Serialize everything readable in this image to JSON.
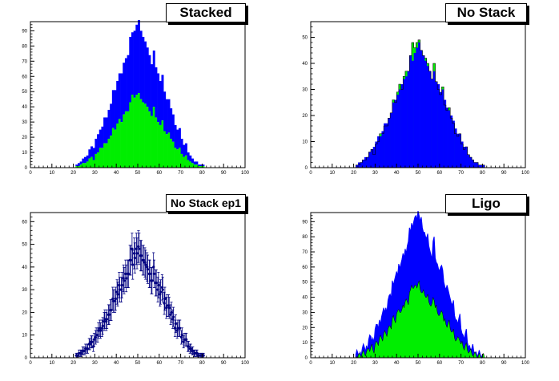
{
  "colors": {
    "stack_top": "#0000ff",
    "stack_bottom": "#00ee00",
    "errorbar": "#000080",
    "axis": "#000000",
    "background": "#ffffff"
  },
  "panels": [
    {
      "title": "Stacked"
    },
    {
      "title": "No Stack"
    },
    {
      "title": "No Stack ep1"
    },
    {
      "title": "Ligo"
    }
  ],
  "chart_data": [
    {
      "type": "bar",
      "mode": "stacked",
      "xlim": [
        0,
        100
      ],
      "ylim": [
        0,
        96
      ],
      "xticks": [
        0,
        10,
        20,
        30,
        40,
        50,
        60,
        70,
        80,
        90,
        100
      ],
      "yticks": [
        0,
        10,
        20,
        30,
        40,
        50,
        60,
        70,
        80,
        90
      ],
      "bin_width": 1,
      "x": [
        21,
        22,
        23,
        24,
        25,
        26,
        27,
        28,
        29,
        30,
        31,
        32,
        33,
        34,
        35,
        36,
        37,
        38,
        39,
        40,
        41,
        42,
        43,
        44,
        45,
        46,
        47,
        48,
        49,
        50,
        51,
        52,
        53,
        54,
        55,
        56,
        57,
        58,
        59,
        60,
        61,
        62,
        63,
        64,
        65,
        66,
        67,
        68,
        69,
        70,
        71,
        72,
        73,
        74,
        75,
        76,
        77,
        78,
        79,
        80
      ],
      "series": [
        {
          "values": [
            1,
            1,
            2,
            3,
            3,
            4,
            6,
            7,
            5,
            9,
            10,
            13,
            13,
            16,
            16,
            19,
            21,
            26,
            25,
            29,
            32,
            30,
            35,
            37,
            37,
            43,
            48,
            46,
            48,
            49,
            45,
            43,
            42,
            40,
            37,
            34,
            40,
            33,
            30,
            28,
            31,
            24,
            22,
            23,
            19,
            17,
            13,
            12,
            13,
            9,
            7,
            8,
            5,
            4,
            3,
            2,
            2,
            1,
            1,
            1
          ]
        },
        {
          "values": [
            1,
            2,
            2,
            3,
            4,
            4,
            6,
            7,
            8,
            10,
            12,
            12,
            14,
            17,
            17,
            19,
            21,
            25,
            26,
            28,
            30,
            32,
            34,
            35,
            37,
            43,
            41,
            44,
            46,
            48,
            45,
            43,
            41,
            39,
            37,
            34,
            37,
            33,
            32,
            29,
            30,
            26,
            23,
            22,
            20,
            18,
            15,
            13,
            13,
            10,
            8,
            8,
            5,
            4,
            3,
            2,
            2,
            1,
            1,
            1
          ]
        }
      ]
    },
    {
      "type": "bar",
      "mode": "overlay",
      "xlim": [
        0,
        100
      ],
      "ylim": [
        0,
        56
      ],
      "xticks": [
        0,
        10,
        20,
        30,
        40,
        50,
        60,
        70,
        80,
        90,
        100
      ],
      "yticks": [
        0,
        10,
        20,
        30,
        40,
        50
      ],
      "bin_width": 1,
      "x": [
        21,
        22,
        23,
        24,
        25,
        26,
        27,
        28,
        29,
        30,
        31,
        32,
        33,
        34,
        35,
        36,
        37,
        38,
        39,
        40,
        41,
        42,
        43,
        44,
        45,
        46,
        47,
        48,
        49,
        50,
        51,
        52,
        53,
        54,
        55,
        56,
        57,
        58,
        59,
        60,
        61,
        62,
        63,
        64,
        65,
        66,
        67,
        68,
        69,
        70,
        71,
        72,
        73,
        74,
        75,
        76,
        77,
        78,
        79,
        80
      ],
      "series": [
        {
          "values": [
            1,
            1,
            2,
            3,
            3,
            4,
            6,
            7,
            5,
            9,
            10,
            13,
            13,
            16,
            16,
            19,
            21,
            26,
            25,
            29,
            32,
            30,
            35,
            37,
            37,
            43,
            48,
            46,
            48,
            49,
            45,
            43,
            42,
            40,
            37,
            34,
            40,
            33,
            30,
            28,
            31,
            24,
            22,
            23,
            19,
            17,
            13,
            12,
            13,
            9,
            7,
            8,
            5,
            4,
            3,
            2,
            2,
            1,
            1,
            1
          ]
        },
        {
          "values": [
            1,
            2,
            2,
            3,
            4,
            4,
            6,
            7,
            8,
            10,
            12,
            12,
            14,
            17,
            17,
            19,
            21,
            25,
            26,
            28,
            30,
            32,
            34,
            35,
            37,
            43,
            41,
            44,
            46,
            48,
            45,
            43,
            41,
            39,
            37,
            34,
            37,
            33,
            32,
            29,
            30,
            26,
            23,
            22,
            20,
            18,
            15,
            13,
            13,
            10,
            8,
            8,
            5,
            4,
            3,
            2,
            2,
            1,
            1,
            1
          ]
        }
      ]
    },
    {
      "type": "scatter",
      "mode": "error_bars",
      "xlim": [
        0,
        100
      ],
      "ylim": [
        0,
        64
      ],
      "xticks": [
        0,
        10,
        20,
        30,
        40,
        50,
        60,
        70,
        80,
        90,
        100
      ],
      "yticks": [
        0,
        10,
        20,
        30,
        40,
        50,
        60
      ],
      "x": [
        21,
        22,
        23,
        24,
        25,
        26,
        27,
        28,
        29,
        30,
        31,
        32,
        33,
        34,
        35,
        36,
        37,
        38,
        39,
        40,
        41,
        42,
        43,
        44,
        45,
        46,
        47,
        48,
        49,
        50,
        51,
        52,
        53,
        54,
        55,
        56,
        57,
        58,
        59,
        60,
        61,
        62,
        63,
        64,
        65,
        66,
        67,
        68,
        69,
        70,
        71,
        72,
        73,
        74,
        75,
        76,
        77,
        78,
        79,
        80
      ],
      "series": [
        {
          "values": [
            1,
            1,
            2,
            3,
            3,
            4,
            6,
            7,
            5,
            9,
            10,
            13,
            13,
            16,
            16,
            19,
            21,
            26,
            25,
            29,
            32,
            30,
            35,
            37,
            37,
            43,
            48,
            46,
            48,
            49,
            45,
            43,
            42,
            40,
            37,
            34,
            40,
            33,
            30,
            28,
            31,
            24,
            22,
            23,
            19,
            17,
            13,
            12,
            13,
            9,
            7,
            8,
            5,
            4,
            3,
            2,
            2,
            1,
            1,
            1
          ]
        },
        {
          "values": [
            1,
            2,
            2,
            3,
            4,
            4,
            6,
            7,
            8,
            10,
            12,
            12,
            14,
            17,
            17,
            19,
            21,
            25,
            26,
            28,
            30,
            32,
            34,
            35,
            37,
            43,
            41,
            44,
            46,
            48,
            45,
            43,
            41,
            39,
            37,
            34,
            37,
            33,
            32,
            29,
            30,
            26,
            23,
            22,
            20,
            18,
            15,
            13,
            13,
            10,
            8,
            8,
            5,
            4,
            3,
            2,
            2,
            1,
            1,
            1
          ]
        }
      ]
    },
    {
      "type": "area",
      "mode": "stacked",
      "xlim": [
        0,
        100
      ],
      "ylim": [
        0,
        96
      ],
      "xticks": [
        0,
        10,
        20,
        30,
        40,
        50,
        60,
        70,
        80,
        90,
        100
      ],
      "yticks": [
        0,
        10,
        20,
        30,
        40,
        50,
        60,
        70,
        80,
        90
      ],
      "x": [
        21,
        22,
        23,
        24,
        25,
        26,
        27,
        28,
        29,
        30,
        31,
        32,
        33,
        34,
        35,
        36,
        37,
        38,
        39,
        40,
        41,
        42,
        43,
        44,
        45,
        46,
        47,
        48,
        49,
        50,
        51,
        52,
        53,
        54,
        55,
        56,
        57,
        58,
        59,
        60,
        61,
        62,
        63,
        64,
        65,
        66,
        67,
        68,
        69,
        70,
        71,
        72,
        73,
        74,
        75,
        76,
        77,
        78,
        79,
        80
      ],
      "series": [
        {
          "values": [
            1,
            1,
            2,
            3,
            3,
            4,
            6,
            7,
            5,
            9,
            10,
            13,
            13,
            16,
            16,
            19,
            21,
            26,
            25,
            29,
            32,
            30,
            35,
            37,
            37,
            43,
            48,
            46,
            48,
            49,
            45,
            43,
            42,
            40,
            37,
            34,
            40,
            33,
            30,
            28,
            31,
            24,
            22,
            23,
            19,
            17,
            13,
            12,
            13,
            9,
            7,
            8,
            5,
            4,
            3,
            2,
            2,
            1,
            1,
            1
          ]
        },
        {
          "values": [
            1,
            2,
            2,
            3,
            4,
            4,
            6,
            7,
            8,
            10,
            12,
            12,
            14,
            17,
            17,
            19,
            21,
            25,
            26,
            28,
            30,
            32,
            34,
            35,
            37,
            43,
            41,
            44,
            46,
            48,
            45,
            43,
            41,
            39,
            37,
            34,
            37,
            33,
            32,
            29,
            30,
            26,
            23,
            22,
            20,
            18,
            15,
            13,
            13,
            10,
            8,
            8,
            5,
            4,
            3,
            2,
            2,
            1,
            1,
            1
          ]
        }
      ]
    }
  ]
}
